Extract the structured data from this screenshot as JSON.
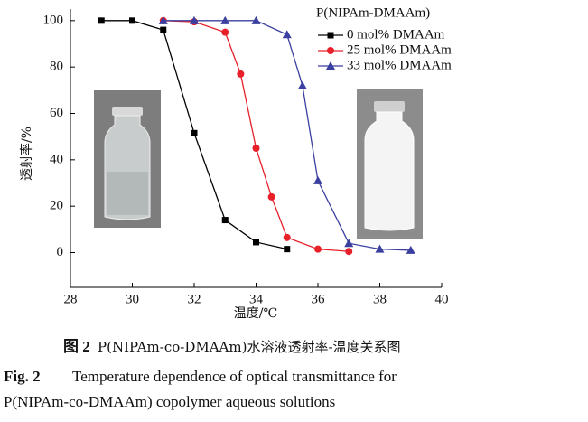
{
  "chart_data": {
    "type": "line",
    "x_label": "温度/℃",
    "y_label": "透射率/%",
    "legend_title": "P(NIPAm-DMAAm)",
    "xlim": [
      28,
      40
    ],
    "xticks": [
      28,
      30,
      32,
      34,
      36,
      38,
      40
    ],
    "ylim": [
      -15,
      105
    ],
    "yticks": [
      0,
      20,
      40,
      60,
      80,
      100
    ],
    "series": [
      {
        "name": "0 mol% DMAAm",
        "color": "#000000",
        "marker": "square",
        "x": [
          29,
          30,
          31,
          32,
          33,
          34,
          35
        ],
        "values": [
          100,
          100,
          96,
          51.5,
          14,
          4.5,
          1.5
        ]
      },
      {
        "name": "25 mol% DMAAm",
        "color": "#e8202a",
        "marker": "circle",
        "x": [
          31,
          32,
          33,
          33.5,
          34,
          34.5,
          35,
          36,
          37
        ],
        "values": [
          100,
          99.5,
          95,
          77,
          45,
          24,
          6.5,
          1.5,
          0.5
        ]
      },
      {
        "name": "33 mol% DMAAm",
        "color": "#3a3fa0",
        "marker": "triangle",
        "x": [
          31,
          32,
          33,
          34,
          35,
          35.5,
          36,
          37,
          38,
          39
        ],
        "values": [
          100,
          100,
          100,
          100,
          94,
          72,
          31,
          4,
          1.5,
          1
        ]
      }
    ]
  },
  "caption": {
    "cn_label": "图 2",
    "cn_text": "P(NIPAm-co-DMAAm)水溶液透射率-温度关系图",
    "en_label": "Fig. 2",
    "en_text": "Temperature dependence of optical transmittance for",
    "en_text_2": "P(NIPAm-co-DMAAm) copolymer aqueous solutions"
  }
}
